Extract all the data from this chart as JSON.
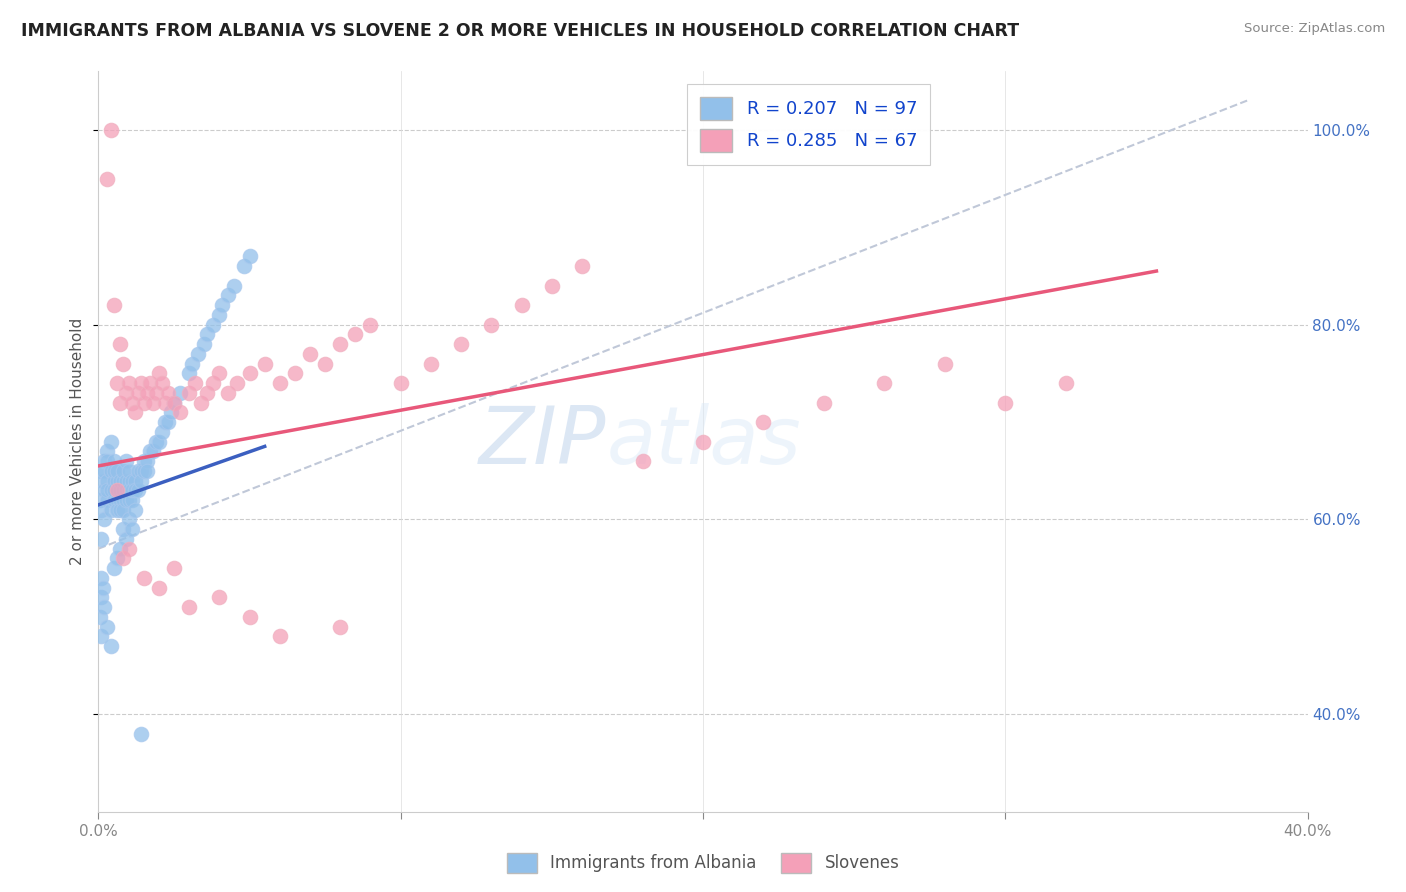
{
  "title": "IMMIGRANTS FROM ALBANIA VS SLOVENE 2 OR MORE VEHICLES IN HOUSEHOLD CORRELATION CHART",
  "source": "Source: ZipAtlas.com",
  "ylabel": "2 or more Vehicles in Household",
  "legend_albania": "Immigrants from Albania",
  "legend_slovene": "Slovenes",
  "r_albania": 0.207,
  "n_albania": 97,
  "r_slovene": 0.285,
  "n_slovene": 67,
  "color_albania": "#92C0EA",
  "color_slovene": "#F4A0B8",
  "trendline_albania": "#3B5FC0",
  "trendline_slovene": "#E8587A",
  "trendline_dashed_color": "#C0C8D8",
  "watermark_zip": "ZIP",
  "watermark_atlas": "atlas",
  "watermark_color": "#D0DFF0",
  "xlim": [
    0.0,
    0.4
  ],
  "ylim": [
    0.3,
    1.06
  ],
  "xtick_positions": [
    0.0,
    0.1,
    0.2,
    0.3,
    0.4
  ],
  "xtick_labels": [
    "0.0%",
    "",
    "",
    "",
    "40.0%"
  ],
  "ytick_vals": [
    0.4,
    0.6,
    0.8,
    1.0
  ],
  "ytick_labels": [
    "40.0%",
    "60.0%",
    "80.0%",
    "100.0%"
  ],
  "albania_x": [
    0.0005,
    0.001,
    0.001,
    0.001,
    0.0015,
    0.002,
    0.002,
    0.002,
    0.002,
    0.003,
    0.003,
    0.003,
    0.003,
    0.003,
    0.004,
    0.004,
    0.004,
    0.004,
    0.005,
    0.005,
    0.005,
    0.005,
    0.005,
    0.006,
    0.006,
    0.006,
    0.006,
    0.007,
    0.007,
    0.007,
    0.007,
    0.008,
    0.008,
    0.008,
    0.008,
    0.008,
    0.009,
    0.009,
    0.009,
    0.009,
    0.009,
    0.01,
    0.01,
    0.01,
    0.01,
    0.011,
    0.011,
    0.011,
    0.012,
    0.012,
    0.013,
    0.013,
    0.014,
    0.014,
    0.015,
    0.015,
    0.016,
    0.016,
    0.017,
    0.018,
    0.019,
    0.02,
    0.021,
    0.022,
    0.023,
    0.024,
    0.025,
    0.027,
    0.03,
    0.031,
    0.033,
    0.035,
    0.036,
    0.038,
    0.04,
    0.041,
    0.043,
    0.045,
    0.048,
    0.05,
    0.0005,
    0.0008,
    0.001,
    0.001,
    0.0015,
    0.002,
    0.003,
    0.004,
    0.005,
    0.006,
    0.007,
    0.008,
    0.009,
    0.01,
    0.011,
    0.012,
    0.014
  ],
  "albania_y": [
    0.62,
    0.65,
    0.61,
    0.58,
    0.64,
    0.63,
    0.65,
    0.6,
    0.66,
    0.67,
    0.64,
    0.62,
    0.66,
    0.63,
    0.68,
    0.65,
    0.63,
    0.61,
    0.64,
    0.62,
    0.66,
    0.65,
    0.63,
    0.64,
    0.62,
    0.61,
    0.65,
    0.63,
    0.62,
    0.64,
    0.61,
    0.63,
    0.62,
    0.64,
    0.61,
    0.65,
    0.63,
    0.64,
    0.62,
    0.66,
    0.63,
    0.64,
    0.62,
    0.65,
    0.63,
    0.64,
    0.62,
    0.63,
    0.64,
    0.63,
    0.65,
    0.63,
    0.65,
    0.64,
    0.66,
    0.65,
    0.66,
    0.65,
    0.67,
    0.67,
    0.68,
    0.68,
    0.69,
    0.7,
    0.7,
    0.71,
    0.72,
    0.73,
    0.75,
    0.76,
    0.77,
    0.78,
    0.79,
    0.8,
    0.81,
    0.82,
    0.83,
    0.84,
    0.86,
    0.87,
    0.5,
    0.48,
    0.52,
    0.54,
    0.53,
    0.51,
    0.49,
    0.47,
    0.55,
    0.56,
    0.57,
    0.59,
    0.58,
    0.6,
    0.59,
    0.61,
    0.38
  ],
  "slovene_x": [
    0.003,
    0.004,
    0.005,
    0.006,
    0.007,
    0.007,
    0.008,
    0.009,
    0.01,
    0.011,
    0.012,
    0.013,
    0.014,
    0.015,
    0.016,
    0.017,
    0.018,
    0.019,
    0.02,
    0.021,
    0.022,
    0.023,
    0.025,
    0.027,
    0.03,
    0.032,
    0.034,
    0.036,
    0.038,
    0.04,
    0.043,
    0.046,
    0.05,
    0.055,
    0.06,
    0.065,
    0.07,
    0.075,
    0.08,
    0.085,
    0.09,
    0.1,
    0.11,
    0.12,
    0.13,
    0.14,
    0.15,
    0.16,
    0.18,
    0.2,
    0.22,
    0.24,
    0.26,
    0.28,
    0.3,
    0.32,
    0.006,
    0.008,
    0.01,
    0.015,
    0.02,
    0.025,
    0.03,
    0.04,
    0.05,
    0.06,
    0.08
  ],
  "slovene_y": [
    0.95,
    1.0,
    0.82,
    0.74,
    0.78,
    0.72,
    0.76,
    0.73,
    0.74,
    0.72,
    0.71,
    0.73,
    0.74,
    0.72,
    0.73,
    0.74,
    0.72,
    0.73,
    0.75,
    0.74,
    0.72,
    0.73,
    0.72,
    0.71,
    0.73,
    0.74,
    0.72,
    0.73,
    0.74,
    0.75,
    0.73,
    0.74,
    0.75,
    0.76,
    0.74,
    0.75,
    0.77,
    0.76,
    0.78,
    0.79,
    0.8,
    0.74,
    0.76,
    0.78,
    0.8,
    0.82,
    0.84,
    0.86,
    0.66,
    0.68,
    0.7,
    0.72,
    0.74,
    0.76,
    0.72,
    0.74,
    0.63,
    0.56,
    0.57,
    0.54,
    0.53,
    0.55,
    0.51,
    0.52,
    0.5,
    0.48,
    0.49
  ]
}
